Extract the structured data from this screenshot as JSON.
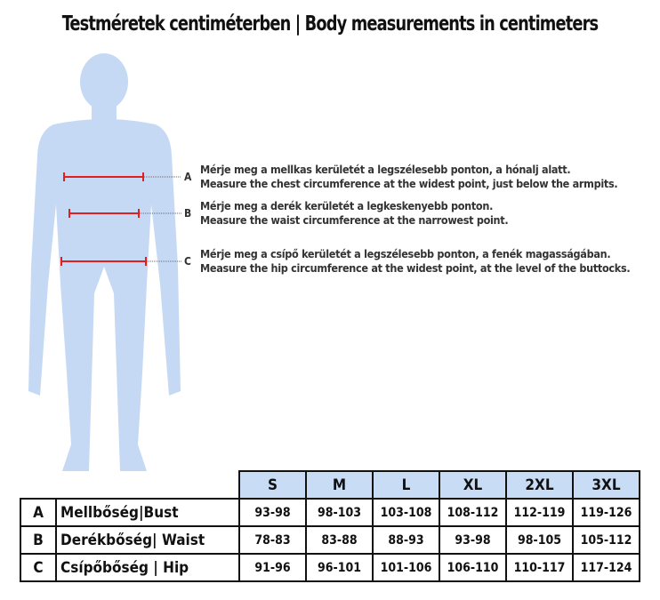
{
  "title": "Testméretek centiméterben | Body measurements in centimeters",
  "colors": {
    "figure": "#c5d9f5",
    "measure_line": "#e02020",
    "header_bg": "#c9dcf5"
  },
  "instructions": [
    {
      "letter": "A",
      "hu": "Mérje meg a mellkas kerületét a legszélesebb ponton, a hónalj alatt.",
      "en": "Measure the chest circumference at the widest point, just below the armpits."
    },
    {
      "letter": "B",
      "hu": "Mérje meg a derék kerületét a legkeskenyebb ponton.",
      "en": "Measure the waist circumference at the narrowest point."
    },
    {
      "letter": "C",
      "hu": "Mérje meg a csípő kerületét a legszélesebb ponton, a fenék magasságában.",
      "en": "Measure the hip circumference at the widest point, at the level of the buttocks."
    }
  ],
  "table": {
    "sizes": [
      "S",
      "M",
      "L",
      "XL",
      "2XL",
      "3XL"
    ],
    "rows": [
      {
        "key": "A",
        "label": "Mellbőség|Bust",
        "values": [
          "93-98",
          "98-103",
          "103-108",
          "108-112",
          "112-119",
          "119-126"
        ]
      },
      {
        "key": "B",
        "label": "Derékbőség| Waist",
        "values": [
          "78-83",
          "83-88",
          "88-93",
          "93-98",
          "98-105",
          "105-112"
        ]
      },
      {
        "key": "C",
        "label": "Csípőbőség | Hip",
        "values": [
          "91-96",
          "96-101",
          "101-106",
          "106-110",
          "110-117",
          "117-124"
        ]
      }
    ]
  }
}
